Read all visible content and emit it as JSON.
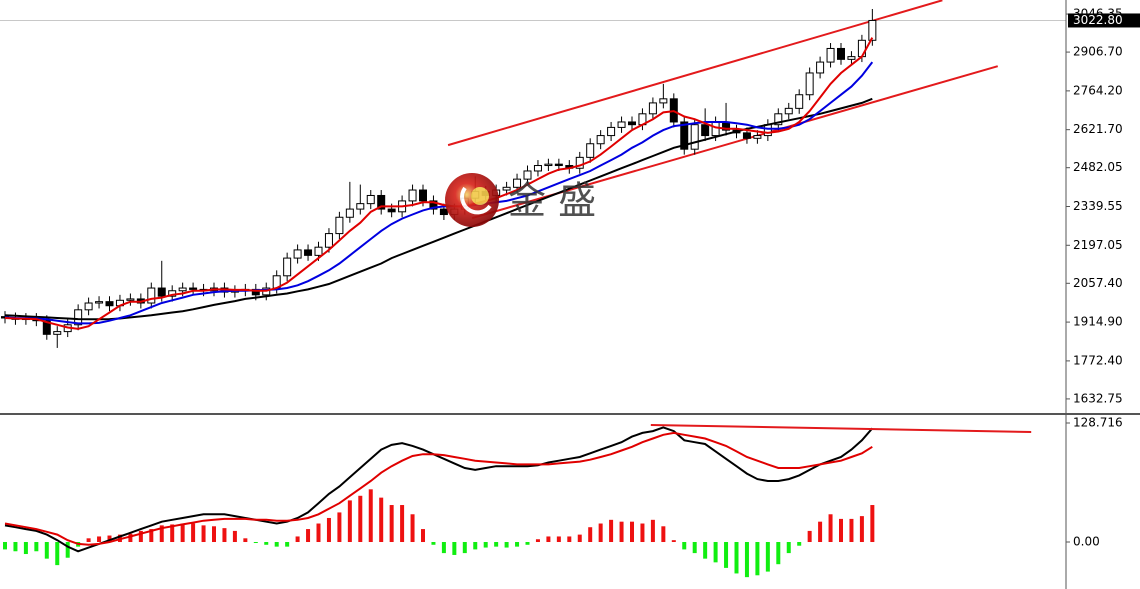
{
  "chart_data": {
    "type": "candlestick",
    "watermark": "金 盛",
    "bull_color": "#ffffff",
    "bear_color": "#000000",
    "open": [
      1935,
      1930,
      1925,
      1928,
      1920,
      1870,
      1880,
      1905,
      1960,
      1985,
      1990,
      1975,
      1995,
      2000,
      1985,
      2040,
      2010,
      2030,
      2040,
      2035,
      2030,
      2040,
      2025,
      2030,
      2035,
      2015,
      2040,
      2085,
      2150,
      2180,
      2160,
      2190,
      2240,
      2300,
      2330,
      2350,
      2380,
      2330,
      2320,
      2360,
      2400,
      2360,
      2330,
      2310,
      2330,
      2370,
      2395,
      2380,
      2400,
      2410,
      2440,
      2470,
      2490,
      2495,
      2490,
      2480,
      2520,
      2570,
      2600,
      2630,
      2650,
      2640,
      2680,
      2720,
      2735,
      2650,
      2550,
      2640,
      2600,
      2650,
      2620,
      2610,
      2590,
      2600,
      2640,
      2680,
      2700,
      2750,
      2830,
      2870,
      2920,
      2880,
      2890,
      2950
    ],
    "high": [
      1955,
      1950,
      1948,
      1948,
      1940,
      1900,
      1925,
      1980,
      2005,
      2010,
      2010,
      2015,
      2020,
      2020,
      2060,
      2140,
      2050,
      2060,
      2060,
      2055,
      2060,
      2060,
      2050,
      2055,
      2055,
      2060,
      2105,
      2170,
      2200,
      2200,
      2210,
      2260,
      2320,
      2430,
      2420,
      2400,
      2400,
      2350,
      2380,
      2420,
      2420,
      2380,
      2350,
      2350,
      2390,
      2450,
      2415,
      2420,
      2430,
      2460,
      2490,
      2510,
      2515,
      2515,
      2510,
      2540,
      2590,
      2620,
      2650,
      2670,
      2670,
      2700,
      2740,
      2790,
      2755,
      2670,
      2660,
      2700,
      2670,
      2720,
      2640,
      2630,
      2620,
      2660,
      2700,
      2720,
      2770,
      2850,
      2890,
      2940,
      2940,
      2910,
      2970,
      3065
    ],
    "low": [
      1910,
      1905,
      1905,
      1900,
      1850,
      1820,
      1860,
      1885,
      1940,
      1965,
      1955,
      1955,
      1975,
      1965,
      1965,
      1990,
      1990,
      2010,
      2015,
      2010,
      2010,
      2005,
      2005,
      2010,
      1995,
      1995,
      2020,
      2065,
      2130,
      2140,
      2140,
      2170,
      2220,
      2280,
      2310,
      2330,
      2310,
      2300,
      2300,
      2340,
      2340,
      2310,
      2290,
      2290,
      2310,
      2350,
      2360,
      2360,
      2380,
      2390,
      2420,
      2450,
      2470,
      2470,
      2460,
      2460,
      2500,
      2550,
      2580,
      2610,
      2620,
      2620,
      2660,
      2700,
      2630,
      2530,
      2530,
      2580,
      2580,
      2600,
      2590,
      2570,
      2570,
      2580,
      2620,
      2660,
      2680,
      2730,
      2810,
      2850,
      2860,
      2860,
      2870,
      2930
    ],
    "close": [
      1930,
      1925,
      1928,
      1920,
      1870,
      1880,
      1905,
      1960,
      1985,
      1990,
      1975,
      1995,
      2000,
      1985,
      2040,
      2010,
      2030,
      2040,
      2035,
      2030,
      2040,
      2025,
      2030,
      2035,
      2015,
      2040,
      2085,
      2150,
      2180,
      2160,
      2190,
      2240,
      2300,
      2330,
      2350,
      2380,
      2330,
      2320,
      2360,
      2400,
      2360,
      2330,
      2310,
      2330,
      2370,
      2395,
      2380,
      2400,
      2410,
      2440,
      2470,
      2490,
      2495,
      2490,
      2480,
      2520,
      2570,
      2600,
      2630,
      2650,
      2640,
      2680,
      2720,
      2735,
      2650,
      2550,
      2640,
      2600,
      2650,
      2620,
      2610,
      2590,
      2600,
      2640,
      2680,
      2700,
      2750,
      2830,
      2870,
      2920,
      2880,
      2890,
      2950,
      3022.8
    ],
    "series": [
      {
        "color": "#000000",
        "values": [
          1940,
          1938,
          1936,
          1934,
          1932,
          1930,
          1928,
          1926,
          1925,
          1925,
          1926,
          1928,
          1932,
          1936,
          1940,
          1945,
          1950,
          1955,
          1962,
          1970,
          1978,
          1985,
          1992,
          2000,
          2005,
          2010,
          2015,
          2020,
          2028,
          2035,
          2045,
          2055,
          2070,
          2085,
          2100,
          2115,
          2130,
          2150,
          2165,
          2180,
          2195,
          2210,
          2225,
          2240,
          2255,
          2270,
          2285,
          2300,
          2315,
          2330,
          2345,
          2360,
          2375,
          2390,
          2405,
          2420,
          2435,
          2450,
          2465,
          2480,
          2495,
          2510,
          2525,
          2540,
          2555,
          2565,
          2575,
          2585,
          2595,
          2605,
          2615,
          2625,
          2632,
          2640,
          2648,
          2656,
          2664,
          2672,
          2680,
          2690,
          2700,
          2710,
          2720,
          2735
        ]
      },
      {
        "color": "#0000e0",
        "values": [
          1932,
          1930,
          1929,
          1928,
          1925,
          1920,
          1915,
          1910,
          1910,
          1912,
          1920,
          1930,
          1940,
          1955,
          1970,
          1985,
          1995,
          2005,
          2015,
          2020,
          2025,
          2028,
          2030,
          2030,
          2032,
          2033,
          2035,
          2040,
          2050,
          2065,
          2085,
          2105,
          2130,
          2160,
          2190,
          2220,
          2250,
          2275,
          2295,
          2310,
          2325,
          2335,
          2340,
          2340,
          2340,
          2345,
          2350,
          2355,
          2360,
          2370,
          2380,
          2395,
          2410,
          2425,
          2440,
          2455,
          2470,
          2490,
          2510,
          2530,
          2555,
          2575,
          2600,
          2620,
          2635,
          2640,
          2645,
          2650,
          2650,
          2650,
          2645,
          2640,
          2630,
          2625,
          2625,
          2630,
          2640,
          2660,
          2690,
          2720,
          2750,
          2780,
          2820,
          2870
        ]
      },
      {
        "color": "#e00000",
        "values": [
          1930,
          1928,
          1927,
          1926,
          1915,
          1905,
          1895,
          1890,
          1900,
          1925,
          1950,
          1975,
          1990,
          1990,
          2000,
          2005,
          2015,
          2020,
          2030,
          2030,
          2035,
          2035,
          2033,
          2033,
          2030,
          2030,
          2040,
          2060,
          2090,
          2120,
          2150,
          2180,
          2215,
          2250,
          2280,
          2320,
          2340,
          2340,
          2340,
          2345,
          2355,
          2355,
          2345,
          2340,
          2340,
          2350,
          2360,
          2370,
          2385,
          2400,
          2420,
          2440,
          2460,
          2475,
          2480,
          2490,
          2505,
          2530,
          2560,
          2590,
          2620,
          2640,
          2660,
          2685,
          2690,
          2670,
          2660,
          2645,
          2630,
          2625,
          2625,
          2620,
          2615,
          2610,
          2615,
          2625,
          2650,
          2690,
          2740,
          2790,
          2830,
          2860,
          2890,
          2960
        ]
      }
    ],
    "trendlines": [
      {
        "color": "#e31a1c",
        "x": [
          42.4,
          89.7
        ],
        "y": [
          2565,
          3097
        ]
      },
      {
        "color": "#e31a1c",
        "x": [
          44.7,
          95
        ],
        "y": [
          2297,
          2855
        ]
      }
    ],
    "ylim": [
      1581,
      3098
    ],
    "yticks": [
      3046.35,
      {
        "value": 2906.7,
        "label": "2906.70"
      },
      {
        "value": 2764.2,
        "label": "2764.20"
      },
      {
        "value": 2621.7,
        "label": "2621.70"
      },
      2482.05,
      2339.55,
      2197.05,
      {
        "value": 2057.4,
        "label": "2057.40"
      },
      {
        "value": 1914.9,
        "label": "1914.90"
      },
      {
        "value": 1772.4,
        "label": "1772.40"
      },
      1632.75
    ],
    "last_price": {
      "value": 3022.8,
      "label": "3022.80"
    },
    "macd": {
      "type": "macd",
      "ylim": [
        -46.5,
        136.3
      ],
      "yticks": [
        128.716,
        {
          "value": 0,
          "label": "0.00"
        }
      ],
      "pos_color": "#ee1111",
      "neg_color": "#11ee11",
      "histogram": [
        -8,
        -10,
        -13,
        -10,
        -18,
        -25,
        -17,
        -5,
        4,
        6,
        7,
        8,
        9,
        12,
        14,
        18,
        19,
        20,
        20,
        18,
        17,
        15,
        12,
        4,
        -1,
        -3,
        -5,
        -5,
        6,
        14,
        20,
        26,
        32,
        45,
        50,
        57,
        48,
        40,
        40,
        30,
        14,
        -3,
        -12,
        -14,
        -12,
        -8,
        -6,
        -5,
        -6,
        -5,
        -3,
        3,
        6,
        6,
        6,
        8,
        16,
        20,
        24,
        22,
        22,
        20,
        24,
        17,
        2,
        -8,
        -12,
        -18,
        -22,
        -28,
        -34,
        -38,
        -36,
        -32,
        -24,
        -12,
        -4,
        12,
        22,
        30,
        25,
        25,
        28,
        40
      ],
      "lines": [
        {
          "color": "#000000",
          "values": [
            18,
            16,
            14,
            12,
            8,
            2,
            -5,
            -10,
            -6,
            -2,
            2,
            6,
            10,
            14,
            18,
            22,
            24,
            26,
            28,
            30,
            30,
            30,
            28,
            26,
            24,
            22,
            20,
            22,
            26,
            32,
            42,
            52,
            60,
            70,
            80,
            90,
            100,
            105,
            107,
            104,
            100,
            95,
            90,
            85,
            80,
            78,
            80,
            82,
            82,
            82,
            82,
            83,
            86,
            88,
            90,
            92,
            96,
            100,
            104,
            108,
            114,
            118,
            120,
            124,
            120,
            110,
            108,
            106,
            98,
            90,
            82,
            74,
            68,
            66,
            66,
            68,
            72,
            78,
            84,
            88,
            92,
            100,
            110,
            123
          ]
        },
        {
          "color": "#e00000",
          "values": [
            20,
            18,
            16,
            14,
            11,
            8,
            2,
            -2,
            -3,
            -2,
            0,
            3,
            6,
            9,
            12,
            15,
            17,
            19,
            21,
            23,
            24,
            25,
            25,
            25,
            24,
            24,
            23,
            23,
            24,
            26,
            30,
            36,
            42,
            50,
            58,
            66,
            75,
            82,
            88,
            93,
            95,
            95,
            94,
            92,
            90,
            88,
            87,
            86,
            85,
            84,
            84,
            84,
            84,
            85,
            86,
            87,
            89,
            92,
            95,
            99,
            103,
            108,
            112,
            116,
            118,
            116,
            114,
            112,
            108,
            104,
            98,
            92,
            88,
            84,
            80,
            80,
            80,
            82,
            84,
            86,
            88,
            92,
            96,
            103
          ]
        }
      ],
      "trendline": {
        "color": "#e31a1c",
        "x": [
          61.8,
          98.2
        ],
        "y": [
          126.6,
          119
        ]
      }
    }
  }
}
